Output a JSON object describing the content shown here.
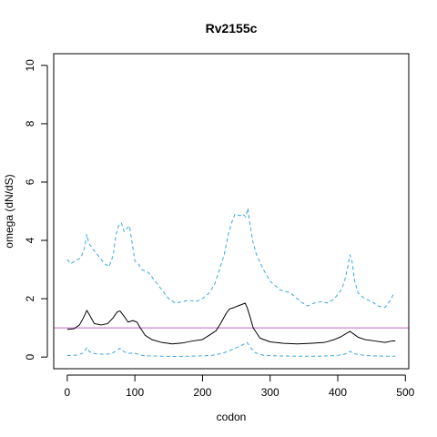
{
  "chart_data": {
    "type": "line",
    "title": "Rv2155c",
    "xlabel": "codon",
    "ylabel": "omega (dN/dS)",
    "xlim": [
      -20,
      505
    ],
    "ylim": [
      -0.4,
      10.4
    ],
    "x_ticks": [
      0,
      100,
      200,
      300,
      400,
      500
    ],
    "y_ticks": [
      0,
      2,
      4,
      6,
      8,
      10
    ],
    "grid": false,
    "reference_line": {
      "y": 1,
      "color": "#c266c2"
    },
    "series": [
      {
        "style": "solid",
        "color": "#000000",
        "x": [
          0,
          10,
          18,
          24,
          29,
          34,
          40,
          50,
          60,
          68,
          74,
          78,
          84,
          90,
          97,
          103,
          108,
          115,
          125,
          140,
          155,
          170,
          185,
          200,
          210,
          220,
          228,
          235,
          240,
          247,
          252,
          258,
          263,
          266,
          270,
          275,
          285,
          300,
          320,
          340,
          360,
          380,
          395,
          405,
          412,
          418,
          423,
          430,
          440,
          455,
          470,
          480,
          485
        ],
        "y": [
          0.95,
          0.97,
          1.1,
          1.35,
          1.6,
          1.4,
          1.15,
          1.1,
          1.15,
          1.35,
          1.55,
          1.58,
          1.4,
          1.2,
          1.25,
          1.2,
          1.0,
          0.75,
          0.6,
          0.5,
          0.45,
          0.48,
          0.55,
          0.6,
          0.75,
          0.9,
          1.2,
          1.5,
          1.65,
          1.7,
          1.75,
          1.8,
          1.85,
          1.7,
          1.4,
          1.0,
          0.65,
          0.52,
          0.47,
          0.45,
          0.47,
          0.5,
          0.6,
          0.7,
          0.8,
          0.88,
          0.8,
          0.68,
          0.6,
          0.55,
          0.5,
          0.55,
          0.55
        ]
      },
      {
        "style": "dashed",
        "color": "#3aa6e0",
        "x": [
          0,
          5,
          12,
          20,
          25,
          29,
          32,
          38,
          45,
          55,
          62,
          68,
          72,
          76,
          80,
          84,
          88,
          92,
          96,
          100,
          105,
          110,
          120,
          130,
          140,
          150,
          160,
          170,
          180,
          190,
          200,
          210,
          218,
          225,
          232,
          238,
          243,
          248,
          255,
          260,
          264,
          267,
          270,
          274,
          280,
          290,
          300,
          315,
          330,
          345,
          355,
          365,
          375,
          385,
          395,
          405,
          410,
          414,
          418,
          421,
          425,
          430,
          440,
          450,
          460,
          470,
          478,
          482,
          485
        ],
        "y": [
          3.35,
          3.2,
          3.3,
          3.4,
          3.7,
          4.2,
          3.9,
          3.7,
          3.5,
          3.2,
          3.1,
          3.5,
          4.2,
          4.5,
          4.6,
          4.3,
          4.4,
          4.5,
          3.9,
          3.3,
          3.2,
          3.0,
          2.9,
          2.6,
          2.3,
          2.0,
          1.85,
          1.9,
          1.95,
          1.9,
          2.0,
          2.2,
          2.5,
          3.0,
          3.5,
          4.2,
          4.6,
          4.9,
          4.85,
          4.9,
          4.8,
          5.1,
          4.6,
          4.0,
          3.5,
          3.0,
          2.6,
          2.3,
          2.2,
          1.9,
          1.75,
          1.85,
          1.9,
          1.85,
          2.0,
          2.3,
          2.6,
          3.0,
          3.5,
          3.3,
          2.6,
          2.2,
          2.0,
          1.9,
          1.75,
          1.7,
          1.95,
          2.15,
          2.2
        ]
      },
      {
        "style": "dashed",
        "color": "#3aa6e0",
        "x": [
          0,
          10,
          18,
          24,
          29,
          33,
          40,
          50,
          60,
          68,
          74,
          78,
          84,
          90,
          97,
          105,
          110,
          120,
          140,
          160,
          180,
          200,
          215,
          228,
          238,
          248,
          256,
          262,
          266,
          270,
          278,
          290,
          310,
          340,
          370,
          395,
          408,
          415,
          418,
          423,
          432,
          450,
          470,
          485
        ],
        "y": [
          0.05,
          0.06,
          0.08,
          0.15,
          0.32,
          0.18,
          0.12,
          0.1,
          0.1,
          0.15,
          0.25,
          0.3,
          0.18,
          0.12,
          0.14,
          0.1,
          0.06,
          0.04,
          0.03,
          0.02,
          0.03,
          0.04,
          0.06,
          0.12,
          0.2,
          0.3,
          0.38,
          0.45,
          0.5,
          0.35,
          0.15,
          0.06,
          0.04,
          0.03,
          0.03,
          0.05,
          0.08,
          0.14,
          0.2,
          0.12,
          0.08,
          0.04,
          0.03,
          0.03
        ]
      }
    ]
  }
}
